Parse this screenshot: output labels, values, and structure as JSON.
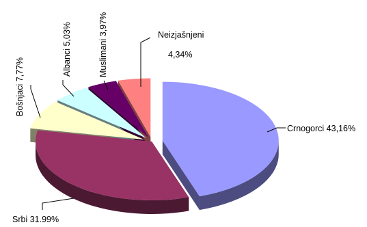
{
  "chart_data": {
    "type": "pie",
    "title": "",
    "slices": [
      {
        "name": "Crnogorci",
        "value": 43.16,
        "label": "Crnogorci 43,16%",
        "top": "#9999ff",
        "side": "#4c4c80"
      },
      {
        "name": "Srbi",
        "value": 31.99,
        "label": "Srbi 31.99%",
        "top": "#993366",
        "side": "#4c1933"
      },
      {
        "name": "Bošnjaci",
        "value": 7.77,
        "label": "Bošnjaci 7,77%",
        "top": "#ffffcc",
        "side": "#808066"
      },
      {
        "name": "Albanci",
        "value": 5.03,
        "label": "Albanci 5,03%",
        "top": "#ccffff",
        "side": "#668080"
      },
      {
        "name": "Muslimani",
        "value": 3.97,
        "label": "Muslimani 3,97%",
        "top": "#660066",
        "side": "#330033"
      },
      {
        "name": "Neizjašnjeni",
        "value": 4.34,
        "label_line1": "Neizjašnjeni",
        "label_line2": "4,34%",
        "top": "#ff8080",
        "side": "#804040"
      }
    ],
    "legend": "none",
    "data_labels": "outside"
  }
}
